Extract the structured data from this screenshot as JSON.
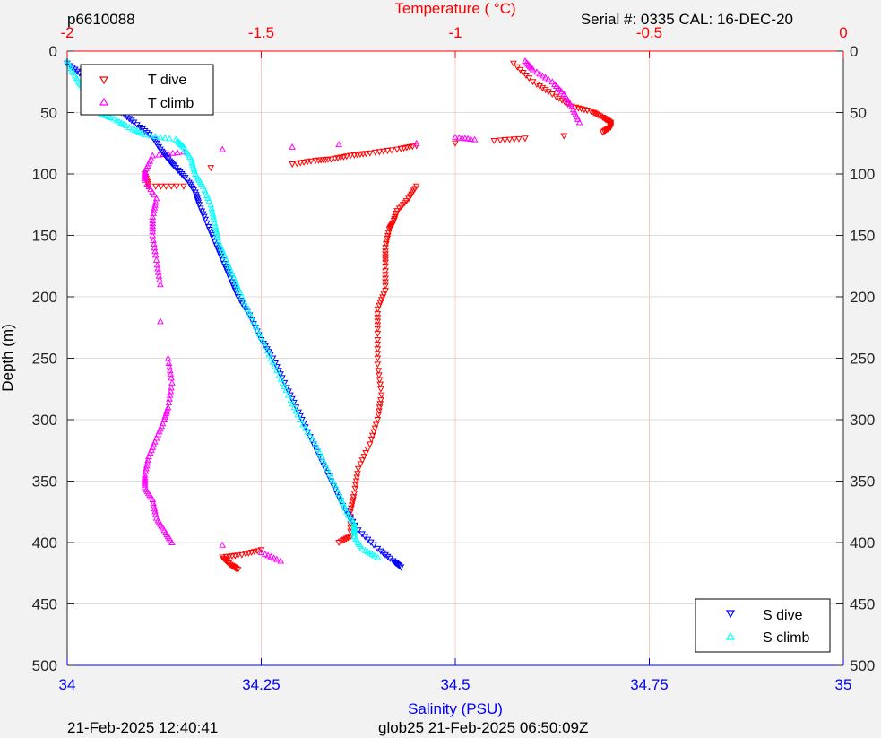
{
  "header": {
    "profile_id": "p6610088",
    "serial": "Serial #: 0335  CAL: 16-DEC-20"
  },
  "footer": {
    "left": "21-Feb-2025 12:40:41",
    "center": "glob25 21-Feb-2025 06:50:09Z"
  },
  "colors": {
    "t_dive": "#ff0000",
    "t_climb": "#ff00ff",
    "s_dive": "#0000ff",
    "s_climb": "#00ffff",
    "temp_axis": "#ff0000",
    "sal_axis": "#0000ff",
    "grid": "#dddddd",
    "temp_grid": "#ffc8c8"
  },
  "chart_data": {
    "type": "scatter",
    "title": "",
    "top_axis": {
      "label": "Temperature (    °C)",
      "range": [
        -2,
        0
      ],
      "ticks": [
        -2,
        -1.5,
        -1,
        -0.5,
        0
      ],
      "tick_labels": [
        "-2",
        "-1.5",
        "-1",
        "-0.5",
        "0"
      ]
    },
    "bottom_axis": {
      "label": "Salinity (PSU)",
      "range": [
        34,
        35
      ],
      "ticks": [
        34,
        34.25,
        34.5,
        34.75,
        35
      ],
      "tick_labels": [
        "34",
        "34.25",
        "34.5",
        "34.75",
        "35"
      ]
    },
    "y_axis": {
      "label": "Depth (m)",
      "range": [
        0,
        500
      ],
      "reversed": true,
      "ticks": [
        0,
        50,
        100,
        150,
        200,
        250,
        300,
        350,
        400,
        450,
        500
      ],
      "tick_labels": [
        "0",
        "50",
        "100",
        "150",
        "200",
        "250",
        "300",
        "350",
        "400",
        "450",
        "500"
      ]
    },
    "grid": true,
    "legends": [
      {
        "placement": "top-left",
        "entries": [
          "T dive",
          "T climb"
        ]
      },
      {
        "placement": "bottom-right",
        "entries": [
          "S dive",
          "S climb"
        ]
      }
    ],
    "series": [
      {
        "name": "T dive",
        "axis": "temperature",
        "marker": "triangle-down",
        "points": [
          [
            -1.1,
            110
          ],
          [
            -1.12,
            120
          ],
          [
            -1.15,
            130
          ],
          [
            -1.16,
            140
          ],
          [
            -1.17,
            145
          ],
          [
            -1.18,
            160
          ],
          [
            -1.18,
            175
          ],
          [
            -1.18,
            195
          ],
          [
            -1.2,
            210
          ],
          [
            -1.2,
            230
          ],
          [
            -1.2,
            255
          ],
          [
            -1.19,
            280
          ],
          [
            -1.2,
            300
          ],
          [
            -1.22,
            320
          ],
          [
            -1.25,
            340
          ],
          [
            -1.26,
            360
          ],
          [
            -1.27,
            375
          ],
          [
            -1.27,
            395
          ],
          [
            -1.3,
            400
          ],
          [
            -1.5,
            406
          ],
          [
            -1.55,
            410
          ],
          [
            -1.6,
            412
          ],
          [
            -1.58,
            418
          ],
          [
            -1.56,
            422
          ],
          [
            -1.7,
            110
          ],
          [
            -1.79,
            110
          ],
          [
            -1.8,
            100
          ],
          [
            -1.63,
            95
          ],
          [
            -1.42,
            92
          ],
          [
            -1.36,
            89
          ],
          [
            -1.32,
            88
          ],
          [
            -1.27,
            85
          ],
          [
            -1.22,
            83
          ],
          [
            -1.15,
            80
          ],
          [
            -1.1,
            77
          ],
          [
            -1.0,
            75
          ],
          [
            -0.9,
            73
          ],
          [
            -0.82,
            71
          ],
          [
            -0.72,
            69
          ],
          [
            -0.62,
            66
          ],
          [
            -0.6,
            62
          ],
          [
            -0.6,
            58
          ],
          [
            -0.62,
            54
          ],
          [
            -0.65,
            49
          ],
          [
            -0.7,
            45
          ],
          [
            -0.75,
            35
          ],
          [
            -0.8,
            25
          ],
          [
            -0.85,
            10
          ]
        ]
      },
      {
        "name": "T climb",
        "axis": "temperature",
        "marker": "triangle-up",
        "points": [
          [
            -1.0,
            70
          ],
          [
            -0.95,
            72
          ],
          [
            -1.1,
            75
          ],
          [
            -1.3,
            76
          ],
          [
            -1.42,
            78
          ],
          [
            -1.6,
            80
          ],
          [
            -1.7,
            82
          ],
          [
            -1.78,
            85
          ],
          [
            -1.8,
            98
          ],
          [
            -1.8,
            105
          ],
          [
            -1.77,
            120
          ],
          [
            -1.78,
            135
          ],
          [
            -1.78,
            150
          ],
          [
            -1.77,
            170
          ],
          [
            -1.76,
            190
          ],
          [
            -1.76,
            220
          ],
          [
            -1.74,
            250
          ],
          [
            -1.73,
            270
          ],
          [
            -1.74,
            290
          ],
          [
            -1.75,
            300
          ],
          [
            -1.77,
            315
          ],
          [
            -1.79,
            330
          ],
          [
            -1.8,
            345
          ],
          [
            -1.8,
            355
          ],
          [
            -1.78,
            365
          ],
          [
            -1.77,
            380
          ],
          [
            -1.75,
            390
          ],
          [
            -1.73,
            400
          ],
          [
            -1.6,
            402
          ],
          [
            -1.5,
            408
          ],
          [
            -1.45,
            415
          ],
          [
            -0.68,
            58
          ],
          [
            -0.7,
            45
          ],
          [
            -0.72,
            35
          ],
          [
            -0.75,
            25
          ],
          [
            -0.8,
            15
          ],
          [
            -0.82,
            8
          ]
        ]
      },
      {
        "name": "S dive",
        "axis": "salinity",
        "marker": "triangle-down",
        "points": [
          [
            34.0,
            10
          ],
          [
            34.02,
            20
          ],
          [
            34.04,
            30
          ],
          [
            34.06,
            40
          ],
          [
            34.07,
            50
          ],
          [
            34.09,
            60
          ],
          [
            34.11,
            70
          ],
          [
            34.12,
            80
          ],
          [
            34.13,
            88
          ],
          [
            34.14,
            95
          ],
          [
            34.155,
            105
          ],
          [
            34.165,
            115
          ],
          [
            34.17,
            125
          ],
          [
            34.18,
            140
          ],
          [
            34.19,
            155
          ],
          [
            34.2,
            170
          ],
          [
            34.21,
            185
          ],
          [
            34.22,
            200
          ],
          [
            34.235,
            215
          ],
          [
            34.25,
            235
          ],
          [
            34.265,
            250
          ],
          [
            34.28,
            270
          ],
          [
            34.295,
            290
          ],
          [
            34.31,
            310
          ],
          [
            34.325,
            330
          ],
          [
            34.34,
            350
          ],
          [
            34.355,
            370
          ],
          [
            34.375,
            390
          ],
          [
            34.4,
            405
          ],
          [
            34.42,
            415
          ],
          [
            34.43,
            420
          ]
        ]
      },
      {
        "name": "S climb",
        "axis": "salinity",
        "marker": "triangle-up",
        "points": [
          [
            34.0,
            8
          ],
          [
            34.01,
            20
          ],
          [
            34.02,
            30
          ],
          [
            34.03,
            40
          ],
          [
            34.04,
            50
          ],
          [
            34.06,
            55
          ],
          [
            34.08,
            62
          ],
          [
            34.1,
            68
          ],
          [
            34.14,
            72
          ],
          [
            34.15,
            78
          ],
          [
            34.16,
            88
          ],
          [
            34.165,
            100
          ],
          [
            34.175,
            110
          ],
          [
            34.185,
            125
          ],
          [
            34.19,
            140
          ],
          [
            34.195,
            155
          ],
          [
            34.205,
            170
          ],
          [
            34.215,
            185
          ],
          [
            34.225,
            200
          ],
          [
            34.24,
            220
          ],
          [
            34.255,
            240
          ],
          [
            34.27,
            260
          ],
          [
            34.285,
            280
          ],
          [
            34.3,
            300
          ],
          [
            34.32,
            320
          ],
          [
            34.335,
            340
          ],
          [
            34.35,
            360
          ],
          [
            34.36,
            375
          ],
          [
            34.37,
            385
          ],
          [
            34.37,
            395
          ],
          [
            34.38,
            405
          ],
          [
            34.4,
            412
          ]
        ]
      }
    ]
  }
}
